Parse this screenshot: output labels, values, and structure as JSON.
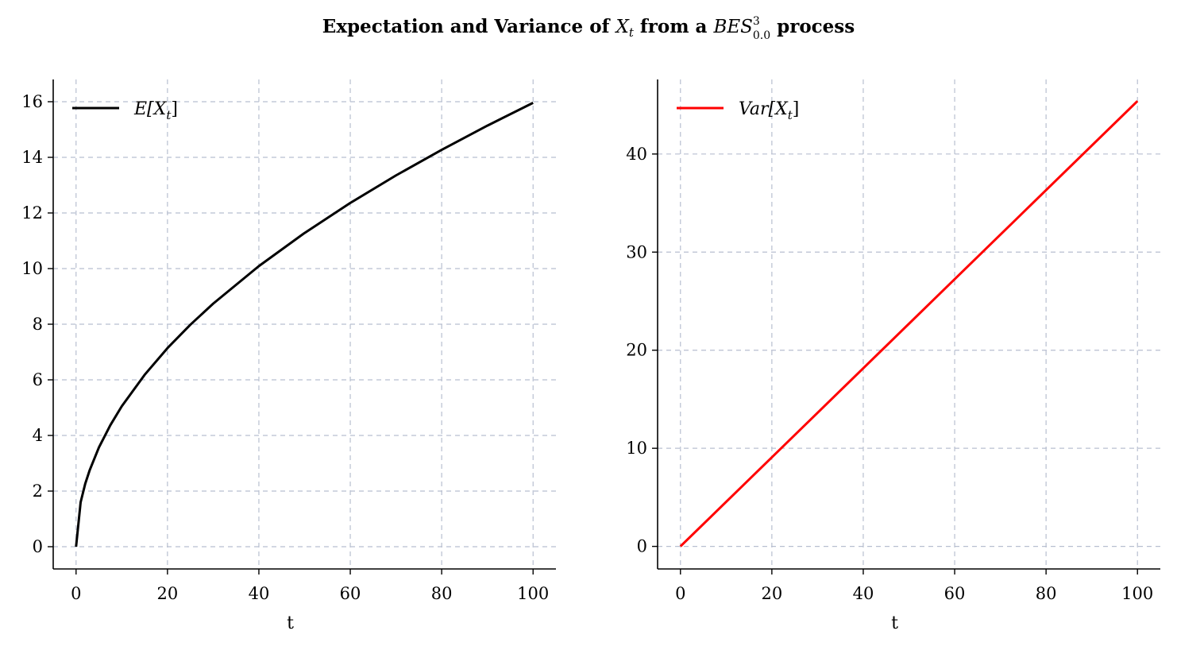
{
  "figure": {
    "title": "Expectation and Variance of X_t from a BES^3_0.0 process",
    "title_parts": {
      "prefix": "Expectation and Variance of ",
      "x_var": "X",
      "x_sub": "t",
      "mid": " from a ",
      "bes": "BES",
      "bes_sup": "3",
      "bes_sub": "0.0",
      "suffix": " process"
    }
  },
  "chart_data": [
    {
      "type": "line",
      "xlabel": "t",
      "ylabel": "",
      "xlim": [
        -5,
        105
      ],
      "ylim": [
        -0.8,
        16.8
      ],
      "xticks": [
        0,
        20,
        40,
        60,
        80,
        100
      ],
      "yticks": [
        0,
        2,
        4,
        6,
        8,
        10,
        12,
        14,
        16
      ],
      "grid": true,
      "legend_position": "top-left",
      "series": [
        {
          "name": "E[X_t]",
          "legend_parts": {
            "pre": "E[X",
            "sub": "t",
            "post": "]"
          },
          "color": "#000000",
          "x": [
            0,
            1,
            2,
            3,
            5,
            7.5,
            10,
            15,
            20,
            25,
            30,
            40,
            50,
            60,
            70,
            80,
            90,
            100
          ],
          "y": [
            0,
            1.6,
            2.26,
            2.76,
            3.57,
            4.37,
            5.05,
            6.18,
            7.14,
            7.98,
            8.74,
            10.09,
            11.28,
            12.36,
            13.35,
            14.27,
            15.14,
            15.96
          ]
        }
      ]
    },
    {
      "type": "line",
      "xlabel": "t",
      "ylabel": "",
      "xlim": [
        -5,
        105
      ],
      "ylim": [
        -2.3,
        47.6
      ],
      "xticks": [
        0,
        20,
        40,
        60,
        80,
        100
      ],
      "yticks": [
        0,
        10,
        20,
        30,
        40
      ],
      "grid": true,
      "legend_position": "top-left",
      "series": [
        {
          "name": "Var[X_t]",
          "legend_parts": {
            "pre": "Var[X",
            "sub": "t",
            "post": "]"
          },
          "color": "#ff0000",
          "x": [
            0,
            100
          ],
          "y": [
            0,
            45.4
          ]
        }
      ]
    }
  ]
}
